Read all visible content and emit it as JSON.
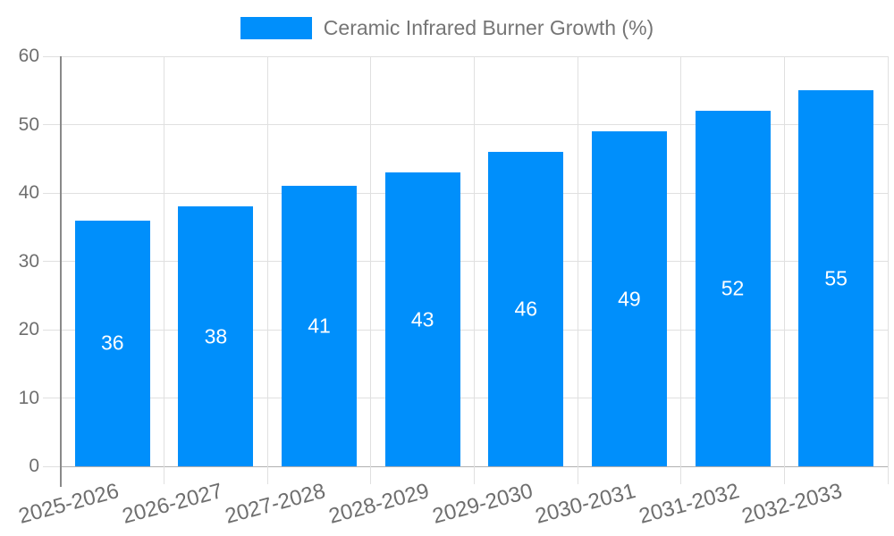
{
  "legend": {
    "label": "Ceramic Infrared Burner Growth (%)"
  },
  "colors": {
    "bar": "#008FFB",
    "grid": "#e0e0e0",
    "baseline": "#b0b0b0",
    "axis_line": "#898989",
    "axis_text": "#6e6e6e",
    "legend_text": "#757575",
    "value_label": "#ffffff"
  },
  "chart_data": {
    "type": "bar",
    "title": "",
    "series_name": "Ceramic Infrared Burner Growth (%)",
    "categories": [
      "2025-2026",
      "2026-2027",
      "2027-2028",
      "2028-2029",
      "2029-2030",
      "2030-2031",
      "2031-2032",
      "2032-2033"
    ],
    "values": [
      36,
      38,
      41,
      43,
      46,
      49,
      52,
      55
    ],
    "xlabel": "",
    "ylabel": "",
    "ylim": [
      0,
      60
    ],
    "yticks": [
      0,
      10,
      20,
      30,
      40,
      50,
      60
    ],
    "grid": true,
    "legend_position": "top-center",
    "value_labels_position": "inside-middle",
    "x_label_rotation_deg": -15
  }
}
